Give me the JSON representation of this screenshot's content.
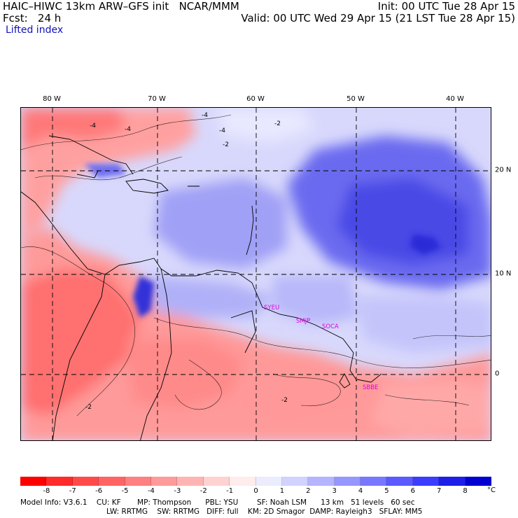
{
  "header": {
    "model": "HAIC–HIWC 13km ARW–GFS init   NCAR/MMM",
    "forecast": "Fcst:   24 h",
    "init": "Init: 00 UTC Tue 28 Apr 15",
    "valid": "Valid: 00 UTC Wed 29 Apr 15 (21 LST Tue 28 Apr 15)",
    "field": "Lifted index"
  },
  "map": {
    "longitude_labels": [
      "80 W",
      "70 W",
      "60 W",
      "50 W",
      "40 W"
    ],
    "latitude_labels": [
      "20 N",
      "10 N",
      "0"
    ],
    "stations": [
      "SYEU",
      "SMJP",
      "SOCA",
      "SBBE"
    ],
    "contour_labels": [
      "-4",
      "-4",
      "-4",
      "-4",
      "-2",
      "-2",
      "-2",
      "-2"
    ]
  },
  "colorbar": {
    "unit": "°C",
    "ticks": [
      "-8",
      "-7",
      "-6",
      "-5",
      "-4",
      "-3",
      "-2",
      "-1",
      "0",
      "1",
      "2",
      "3",
      "4",
      "5",
      "6",
      "7",
      "8"
    ],
    "colors": [
      "#ff0000",
      "#ff2a2a",
      "#ff4a4a",
      "#ff6464",
      "#ff8080",
      "#ff9a9a",
      "#ffb4b4",
      "#ffd2d2",
      "#ffecec",
      "#ececff",
      "#d2d2ff",
      "#b4b4ff",
      "#9696ff",
      "#7878ff",
      "#5a5aff",
      "#3c3cff",
      "#1e1ee8",
      "#0000d0"
    ]
  },
  "model_info": {
    "line1": "Model Info: V3.6.1    CU: KF       MP: Thompson      PBL: YSU        SF: Noah LSM      13 km   51 levels   60 sec",
    "line2": "LW: RRTMG    SW: RRTMG   DIFF: full    KM: 2D Smagor  DAMP: Rayleigh3   SFLAY: MM5"
  }
}
